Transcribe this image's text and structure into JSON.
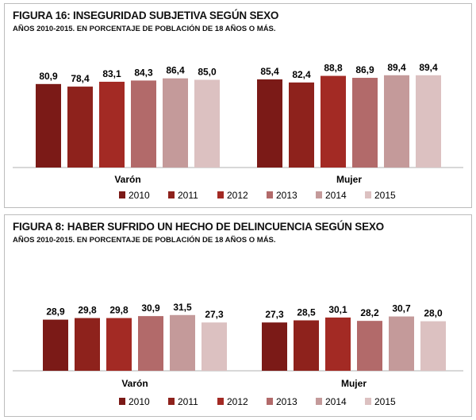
{
  "chart_data": [
    {
      "type": "bar",
      "title": "FIGURA 16: INSEGURIDAD SUBJETIVA SEGÚN SEXO",
      "subtitle": "AÑOS 2010-2015. EN PORCENTAJE DE POBLACIÓN DE 18 AÑOS O MÁS.",
      "categories": [
        "Varón",
        "Mujer"
      ],
      "series": [
        {
          "name": "2010",
          "color": "#7b1a17",
          "values": [
            80.9,
            85.4
          ],
          "labels": [
            "80,9",
            "85,4"
          ]
        },
        {
          "name": "2011",
          "color": "#8e221c",
          "values": [
            78.4,
            82.4
          ],
          "labels": [
            "78,4",
            "82,4"
          ]
        },
        {
          "name": "2012",
          "color": "#a32a24",
          "values": [
            83.1,
            88.8
          ],
          "labels": [
            "83,1",
            "88,8"
          ]
        },
        {
          "name": "2013",
          "color": "#b26a6a",
          "values": [
            84.3,
            86.9
          ],
          "labels": [
            "84,3",
            "86,9"
          ]
        },
        {
          "name": "2014",
          "color": "#c49a9a",
          "values": [
            86.4,
            89.4
          ],
          "labels": [
            "86,4",
            "89,4"
          ]
        },
        {
          "name": "2015",
          "color": "#dcc1c1",
          "values": [
            85.0,
            89.4
          ],
          "labels": [
            "85,0",
            "89,4"
          ]
        }
      ],
      "legend": "bottom",
      "grid": false
    },
    {
      "type": "bar",
      "title": "FIGURA 8: HABER SUFRIDO UN HECHO DE DELINCUENCIA SEGÚN SEXO",
      "subtitle": "AÑOS 2010-2015. EN PORCENTAJE DE POBLACIÓN DE 18 AÑOS O MÁS.",
      "categories": [
        "Varón",
        "Mujer"
      ],
      "series": [
        {
          "name": "2010",
          "color": "#7b1a17",
          "values": [
            28.9,
            27.3
          ],
          "labels": [
            "28,9",
            "27,3"
          ]
        },
        {
          "name": "2011",
          "color": "#8e221c",
          "values": [
            29.8,
            28.5
          ],
          "labels": [
            "29,8",
            "28,5"
          ]
        },
        {
          "name": "2012",
          "color": "#a32a24",
          "values": [
            29.8,
            30.1
          ],
          "labels": [
            "29,8",
            "30,1"
          ]
        },
        {
          "name": "2013",
          "color": "#b26a6a",
          "values": [
            30.9,
            28.2
          ],
          "labels": [
            "30,9",
            "28,2"
          ]
        },
        {
          "name": "2014",
          "color": "#c49a9a",
          "values": [
            31.5,
            30.7
          ],
          "labels": [
            "31,5",
            "30,7"
          ]
        },
        {
          "name": "2015",
          "color": "#dcc1c1",
          "values": [
            27.3,
            28.0
          ],
          "labels": [
            "27,3",
            "28,0"
          ]
        }
      ],
      "legend": "bottom",
      "grid": false
    }
  ]
}
